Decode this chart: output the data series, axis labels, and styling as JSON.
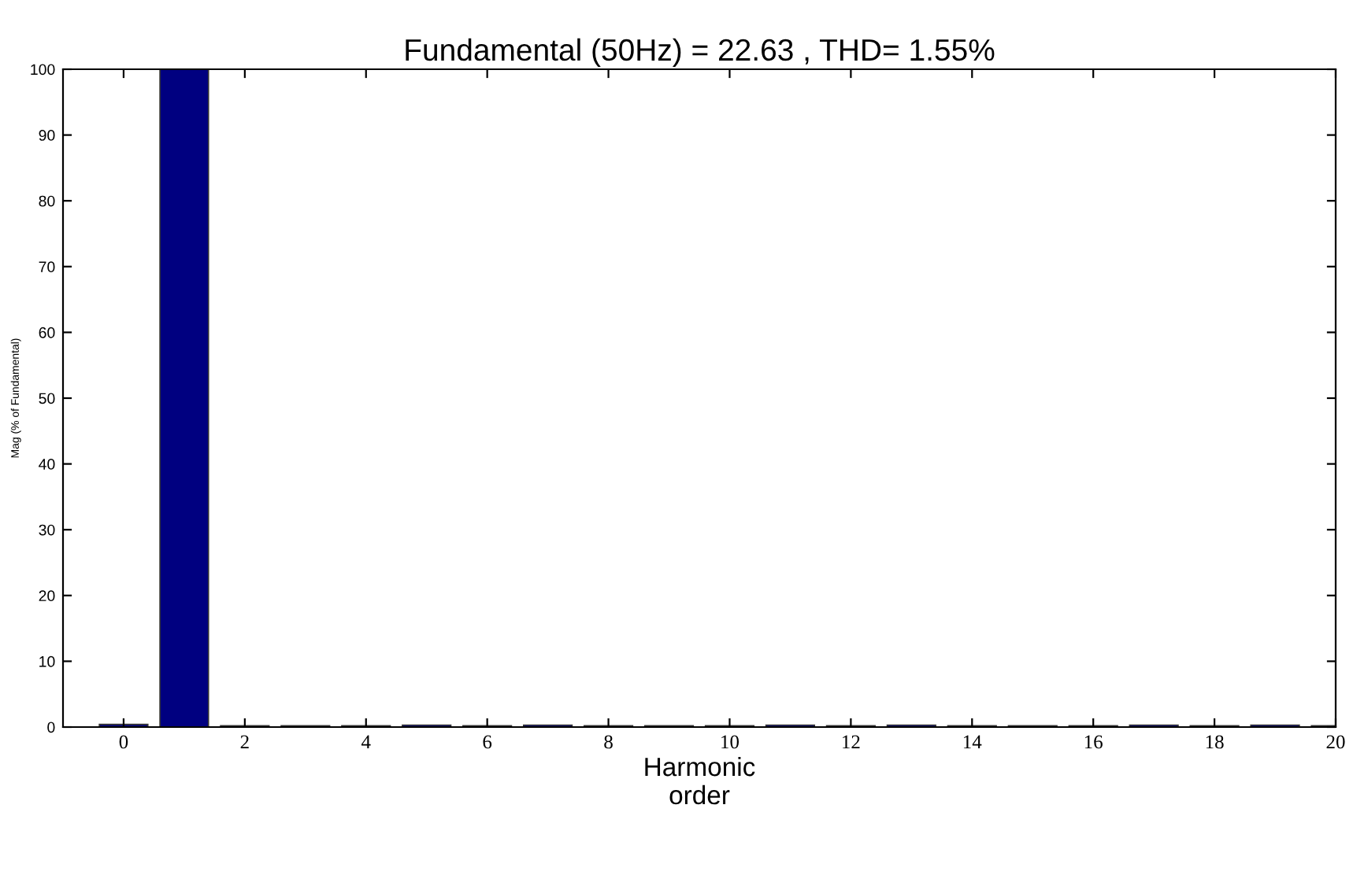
{
  "chart_data": {
    "type": "bar",
    "title": "Fundamental (50Hz) = 22.63 , THD= 1.55%",
    "xlabel": "Harmonic\norder",
    "ylabel": "Mag (% of Fundamental)",
    "x": [
      0,
      1,
      2,
      3,
      4,
      5,
      6,
      7,
      8,
      9,
      10,
      11,
      12,
      13,
      14,
      15,
      16,
      17,
      18,
      19,
      20
    ],
    "series": [
      {
        "color": "#000080",
        "values": [
          0.4,
          100,
          0.2,
          0.2,
          0.2,
          0.3,
          0.2,
          0.3,
          0.2,
          0.2,
          0.2,
          0.3,
          0.2,
          0.3,
          0.2,
          0.2,
          0.2,
          0.3,
          0.2,
          0.3,
          0.2
        ]
      }
    ],
    "xlim": [
      -1,
      20
    ],
    "xticks": [
      0,
      2,
      4,
      6,
      8,
      10,
      12,
      14,
      16,
      18,
      20
    ],
    "ylim": [
      0,
      100
    ],
    "yticks": [
      0,
      10,
      20,
      30,
      40,
      50,
      60,
      70,
      80,
      90,
      100
    ],
    "grid": false
  }
}
